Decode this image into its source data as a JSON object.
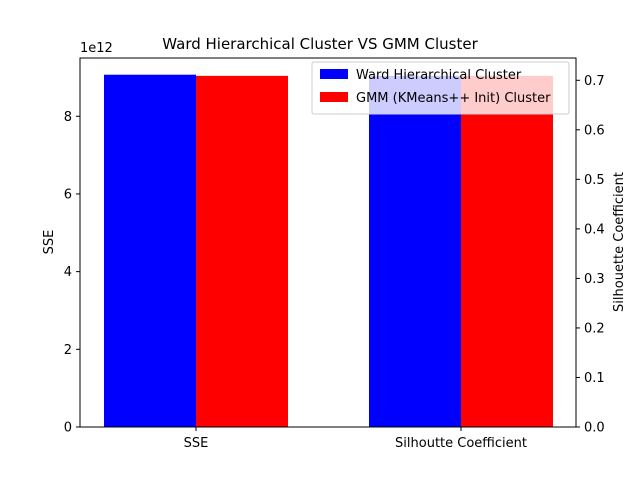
{
  "chart_data": {
    "type": "bar",
    "title": "Ward Hierarchical Cluster VS GMM Cluster",
    "categories": [
      "SSE",
      "Silhoutte Coefficient"
    ],
    "left_axis": {
      "label": "SSE",
      "offset_text": "1e12",
      "scale": 1000000000000,
      "ylim": [
        0,
        9.5
      ],
      "ticks": [
        0,
        2,
        4,
        6,
        8
      ],
      "tick_labels": [
        "0",
        "2",
        "4",
        "6",
        "8"
      ]
    },
    "right_axis": {
      "label": "Silhouette Coefficient",
      "ylim": [
        0,
        0.745
      ],
      "ticks": [
        0.0,
        0.1,
        0.2,
        0.3,
        0.4,
        0.5,
        0.6,
        0.7
      ],
      "tick_labels": [
        "0.0",
        "0.1",
        "0.2",
        "0.3",
        "0.4",
        "0.5",
        "0.6",
        "0.7"
      ]
    },
    "series": [
      {
        "name": "Ward Hierarchical Cluster",
        "color": "#0000ff",
        "values": [
          {
            "category": "SSE",
            "value": 9.07,
            "axis": "left"
          },
          {
            "category": "Silhoutte Coefficient",
            "value": 0.709,
            "axis": "right"
          }
        ]
      },
      {
        "name": "GMM (KMeans++ Init) Cluster",
        "color": "#ff0000",
        "values": [
          {
            "category": "SSE",
            "value": 9.04,
            "axis": "left"
          },
          {
            "category": "Silhoutte Coefficient",
            "value": 0.709,
            "axis": "right"
          }
        ]
      }
    ],
    "legend": "top-right",
    "grid": false
  }
}
